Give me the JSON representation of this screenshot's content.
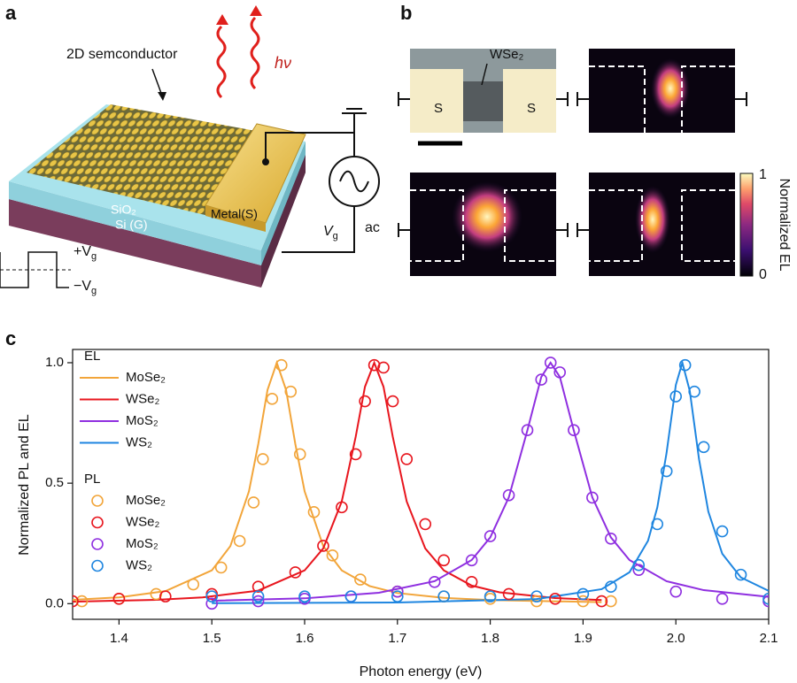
{
  "panel_labels": [
    "a",
    "b",
    "c"
  ],
  "device": {
    "material_label": "2D semconductor",
    "photon": "hν",
    "oxide": "SiO₂",
    "substrate": "Si (G)",
    "contact": "Metal(S)",
    "gate_voltage": [
      "V",
      "g"
    ],
    "source": "ac",
    "waveform_high": [
      "+V",
      "g"
    ],
    "waveform_low": [
      "−V",
      "g"
    ]
  },
  "images": {
    "material": "WSe₂",
    "source_labels": [
      "S",
      "S"
    ],
    "colorbar": {
      "label": "Normalized EL",
      "ticks": [
        1,
        0
      ]
    }
  },
  "chart_data": {
    "type": "line",
    "xlabel": "Photon energy (eV)",
    "ylabel": "Normalized PL and EL",
    "xlim": [
      1.35,
      2.1
    ],
    "ylim": [
      -0.065,
      1.055
    ],
    "xticks": [
      1.4,
      1.5,
      1.6,
      1.7,
      1.8,
      1.9,
      {
        "value": 2,
        "label": "2.0"
      },
      2.1
    ],
    "yticks": [
      {
        "value": 0,
        "label": "0.0"
      },
      0.5,
      {
        "value": 1,
        "label": "1.0"
      }
    ],
    "legend": "upper left",
    "groups": [
      {
        "name": "EL",
        "type": "line",
        "series": [
          {
            "name": "MoSe₂",
            "color": "#f2a53a",
            "x": [
              1.35,
              1.4,
              1.45,
              1.5,
              1.52,
              1.54,
              1.55,
              1.56,
              1.57,
              1.58,
              1.59,
              1.6,
              1.62,
              1.64,
              1.67,
              1.7,
              1.75,
              1.8,
              1.92
            ],
            "values": [
              0.016,
              0.026,
              0.052,
              0.138,
              0.239,
              0.466,
              0.662,
              0.887,
              1,
              0.887,
              0.662,
              0.466,
              0.239,
              0.138,
              0.073,
              0.044,
              0.024,
              0.015,
              0.006
            ]
          },
          {
            "name": "WSe₂",
            "color": "#e8161e",
            "x": [
              1.35,
              1.44,
              1.49,
              1.55,
              1.6,
              1.62,
              1.64,
              1.655,
              1.665,
              1.675,
              1.685,
              1.695,
              1.71,
              1.73,
              1.75,
              1.78,
              1.81,
              1.87,
              1.92
            ],
            "values": [
              0.008,
              0.016,
              0.026,
              0.054,
              0.138,
              0.229,
              0.424,
              0.692,
              0.9,
              1,
              0.9,
              0.692,
              0.424,
              0.229,
              0.138,
              0.075,
              0.047,
              0.023,
              0.015
            ]
          },
          {
            "name": "MoS₂",
            "color": "#8f2fe0",
            "x": [
              1.5,
              1.6,
              1.68,
              1.74,
              1.78,
              1.8,
              1.82,
              1.84,
              1.855,
              1.865,
              1.875,
              1.89,
              1.91,
              1.93,
              1.95,
              1.99,
              2.03,
              2.1
            ],
            "values": [
              0.012,
              0.022,
              0.045,
              0.093,
              0.181,
              0.275,
              0.441,
              0.719,
              0.941,
              1,
              0.941,
              0.719,
              0.441,
              0.275,
              0.181,
              0.093,
              0.056,
              0.028
            ]
          },
          {
            "name": "WS₂",
            "color": "#1f86e0",
            "x": [
              1.5,
              1.7,
              1.85,
              1.92,
              1.95,
              1.97,
              1.98,
              1.99,
              2.0,
              2.007,
              2.015,
              2.025,
              2.035,
              2.05,
              2.07,
              2.1
            ],
            "values": [
              0.002,
              0.005,
              0.019,
              0.06,
              0.13,
              0.261,
              0.399,
              0.626,
              0.908,
              1,
              0.883,
              0.599,
              0.382,
              0.207,
              0.109,
              0.053
            ]
          }
        ]
      },
      {
        "name": "PL",
        "type": "scatter",
        "series": [
          {
            "name": "MoSe₂",
            "color": "#f2a53a",
            "x": [
              1.36,
              1.4,
              1.44,
              1.48,
              1.51,
              1.53,
              1.545,
              1.555,
              1.565,
              1.575,
              1.585,
              1.595,
              1.61,
              1.63,
              1.66,
              1.7,
              1.75,
              1.8,
              1.85,
              1.9,
              1.93
            ],
            "values": [
              0.01,
              0.02,
              0.04,
              0.08,
              0.15,
              0.26,
              0.42,
              0.6,
              0.85,
              0.99,
              0.88,
              0.62,
              0.38,
              0.2,
              0.1,
              0.05,
              0.03,
              0.02,
              0.01,
              0.01,
              0.01
            ]
          },
          {
            "name": "WSe₂",
            "color": "#e8161e",
            "x": [
              1.35,
              1.4,
              1.45,
              1.5,
              1.55,
              1.59,
              1.62,
              1.64,
              1.655,
              1.665,
              1.675,
              1.685,
              1.695,
              1.71,
              1.73,
              1.75,
              1.78,
              1.82,
              1.87,
              1.92
            ],
            "values": [
              0.01,
              0.02,
              0.03,
              0.04,
              0.07,
              0.13,
              0.24,
              0.4,
              0.62,
              0.84,
              0.99,
              0.98,
              0.84,
              0.6,
              0.33,
              0.18,
              0.09,
              0.04,
              0.02,
              0.01
            ]
          },
          {
            "name": "MoS₂",
            "color": "#8f2fe0",
            "x": [
              1.5,
              1.55,
              1.6,
              1.65,
              1.7,
              1.74,
              1.78,
              1.8,
              1.82,
              1.84,
              1.855,
              1.865,
              1.875,
              1.89,
              1.91,
              1.93,
              1.96,
              2.0,
              2.05,
              2.1
            ],
            "values": [
              0,
              0.01,
              0.02,
              0.03,
              0.05,
              0.09,
              0.18,
              0.28,
              0.45,
              0.72,
              0.93,
              1,
              0.96,
              0.72,
              0.44,
              0.27,
              0.14,
              0.05,
              0.02,
              0.01
            ]
          },
          {
            "name": "WS₂",
            "color": "#1f86e0",
            "x": [
              1.5,
              1.55,
              1.6,
              1.65,
              1.7,
              1.75,
              1.8,
              1.85,
              1.9,
              1.93,
              1.96,
              1.98,
              1.99,
              2.0,
              2.01,
              2.02,
              2.03,
              2.05,
              2.07,
              2.1
            ],
            "values": [
              0.03,
              0.03,
              0.03,
              0.03,
              0.03,
              0.03,
              0.03,
              0.03,
              0.04,
              0.07,
              0.16,
              0.33,
              0.55,
              0.86,
              0.99,
              0.88,
              0.65,
              0.3,
              0.12,
              0.02
            ]
          }
        ]
      }
    ]
  }
}
